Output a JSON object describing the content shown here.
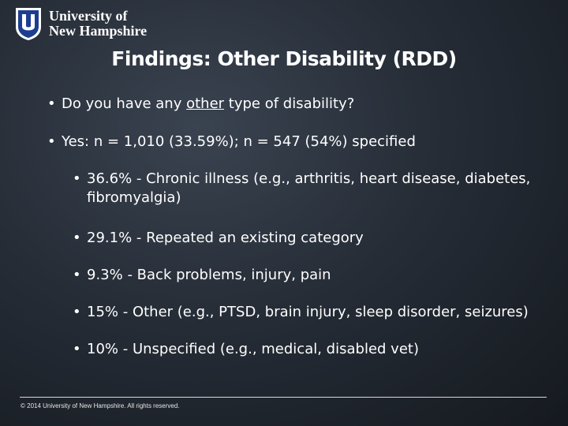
{
  "logo": {
    "mark": "UNH shield logo",
    "line1": "University of",
    "line2": "New Hampshire"
  },
  "title": "Findings: Other Disability (RDD)",
  "bullet_glyph": "•",
  "bullets": {
    "q1_pre": "Do you have any ",
    "q1_em": "other",
    "q1_post": " type of disability?",
    "q2": "Yes: n = 1,010 (33.59%); n = 547 (54%) specified",
    "s1": "36.6% - Chronic illness (e.g., arthritis, heart disease, diabetes, fibromyalgia)",
    "s2": "29.1% - Repeated an existing category",
    "s3": "9.3% - Back problems, injury, pain",
    "s4": "15% - Other (e.g., PTSD, brain injury, sleep disorder, seizures)",
    "s5": "10% - Unspecified (e.g., medical, disabled vet)"
  },
  "footer": "© 2014 University of New Hampshire. All rights reserved.",
  "colors": {
    "shield": "#1d3e8f",
    "text": "#ffffff"
  }
}
